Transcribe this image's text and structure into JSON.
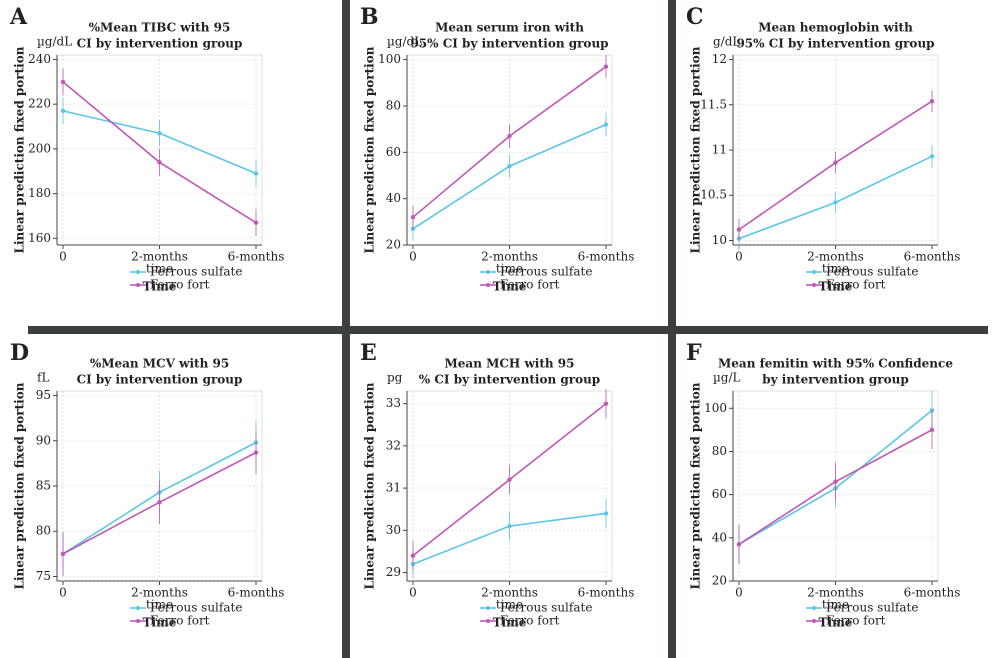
{
  "chart_data": [
    {
      "type": "line",
      "panel": "A",
      "title": [
        "%Mean TIBC with 95",
        "CI by intervention group"
      ],
      "unit": "µg/dL",
      "y_label": "Linear prediction fixed portion",
      "x_label": "Time",
      "x_sublabel": "time",
      "categories": [
        "0",
        "2-months",
        "6-months"
      ],
      "series": [
        {
          "name": "Ferrous sulfate",
          "color": "#5bc6e4",
          "values": [
            217,
            207,
            189
          ],
          "errors": [
            6,
            6,
            6
          ]
        },
        {
          "name": "Ferro fort",
          "color": "#c058b4",
          "values": [
            230,
            194,
            167
          ],
          "errors": [
            6,
            6,
            6
          ]
        }
      ],
      "ylim": [
        157,
        242
      ],
      "yticks": [
        160,
        180,
        200,
        220,
        240
      ],
      "grid": true
    },
    {
      "type": "line",
      "panel": "B",
      "title": [
        "Mean serum iron with",
        "95% CI by intervention group"
      ],
      "unit": "µg/dL",
      "y_label": "Linear prediction fixed portion",
      "x_label": "Time",
      "x_sublabel": "time",
      "categories": [
        "0",
        "2-months",
        "6-months"
      ],
      "series": [
        {
          "name": "Ferrous sulfate",
          "color": "#5bc6e4",
          "values": [
            27,
            54,
            72
          ],
          "errors": [
            5,
            5,
            5
          ]
        },
        {
          "name": "Ferro fort",
          "color": "#c058b4",
          "values": [
            32,
            67,
            97
          ],
          "errors": [
            5,
            5,
            5
          ]
        }
      ],
      "ylim": [
        20,
        102
      ],
      "yticks": [
        20,
        40,
        60,
        80,
        100
      ],
      "grid": true
    },
    {
      "type": "line",
      "panel": "C",
      "title": [
        "Mean hemoglobin with",
        "95% CI by intervention group"
      ],
      "unit": "g/dL",
      "y_label": "Linear prediction fixed portion",
      "x_label": "Time",
      "x_sublabel": "time",
      "categories": [
        "0",
        "2-months",
        "6-months"
      ],
      "series": [
        {
          "name": "Ferrous sulfate",
          "color": "#5bc6e4",
          "values": [
            10.02,
            10.42,
            10.93
          ],
          "errors": [
            0.12,
            0.12,
            0.12
          ]
        },
        {
          "name": "Ferro fort",
          "color": "#c058b4",
          "values": [
            10.12,
            10.86,
            11.54
          ],
          "errors": [
            0.12,
            0.12,
            0.12
          ]
        }
      ],
      "ylim": [
        9.95,
        12.05
      ],
      "yticks": [
        10,
        10.5,
        11,
        11.5,
        12
      ],
      "grid": true
    },
    {
      "type": "line",
      "panel": "D",
      "title": [
        "%Mean MCV with 95",
        "CI by intervention group"
      ],
      "unit": "fL",
      "y_label": "Linear prediction fixed portion",
      "x_label": "Time",
      "x_sublabel": "time",
      "categories": [
        "0",
        "2-months",
        "6-months"
      ],
      "series": [
        {
          "name": "Ferrous sulfate",
          "color": "#5bc6e4",
          "values": [
            77.5,
            84.3,
            89.8
          ],
          "errors": [
            2.4,
            2.4,
            2.4
          ]
        },
        {
          "name": "Ferro fort",
          "color": "#c058b4",
          "values": [
            77.5,
            83.2,
            88.7
          ],
          "errors": [
            2.4,
            2.4,
            2.4
          ]
        }
      ],
      "ylim": [
        74.5,
        95.5
      ],
      "yticks": [
        75,
        80,
        85,
        90,
        95
      ],
      "grid": true
    },
    {
      "type": "line",
      "panel": "E",
      "title": [
        "Mean MCH with 95",
        "% CI by intervention group"
      ],
      "unit": "pg",
      "y_label": "Linear prediction fixed portion",
      "x_label": "Time",
      "x_sublabel": "time",
      "categories": [
        "0",
        "2-months",
        "6-months"
      ],
      "series": [
        {
          "name": "Ferrous sulfate",
          "color": "#5bc6e4",
          "values": [
            29.2,
            30.1,
            30.4
          ],
          "errors": [
            0.35,
            0.35,
            0.35
          ]
        },
        {
          "name": "Ferro fort",
          "color": "#c058b4",
          "values": [
            29.4,
            31.2,
            33.0
          ],
          "errors": [
            0.35,
            0.35,
            0.35
          ]
        }
      ],
      "ylim": [
        28.8,
        33.3
      ],
      "yticks": [
        29,
        30,
        31,
        32,
        33
      ],
      "grid": true
    },
    {
      "type": "line",
      "panel": "F",
      "title": [
        "Mean femitin with 95% Confidence",
        "by intervention group"
      ],
      "unit": "µg/L",
      "y_label": "Linear prediction fixed portion",
      "x_label": "Time",
      "x_sublabel": "time",
      "categories": [
        "0",
        "2-months",
        "6-months"
      ],
      "series": [
        {
          "name": "Ferrous sulfate",
          "color": "#5bc6e4",
          "values": [
            37,
            63,
            99
          ],
          "errors": [
            9,
            9,
            9
          ]
        },
        {
          "name": "Ferro fort",
          "color": "#c058b4",
          "values": [
            37,
            66,
            90
          ],
          "errors": [
            9,
            9,
            9
          ]
        }
      ],
      "ylim": [
        20,
        108
      ],
      "yticks": [
        20,
        40,
        60,
        80,
        100
      ],
      "grid": true
    }
  ]
}
